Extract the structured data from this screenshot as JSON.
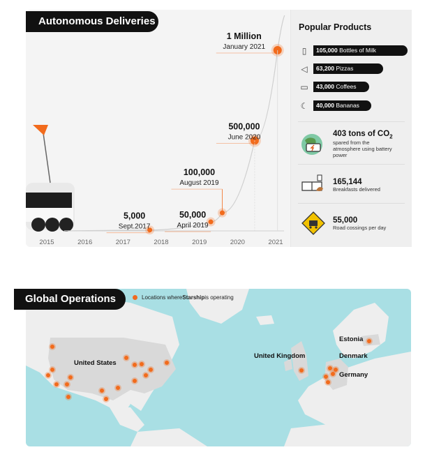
{
  "top_title": "Autonomous Deliveries",
  "chart_data": {
    "type": "line",
    "x_ticks": [
      "2015",
      "2016",
      "2017",
      "2018",
      "2019",
      "2020",
      "2021"
    ],
    "series": [
      {
        "points": [
          {
            "x": "Sept.2017",
            "xnum": 2017.7,
            "y": 5000,
            "label": "5,000",
            "date": "Sept.2017"
          },
          {
            "x": "April 2019",
            "xnum": 2019.3,
            "y": 50000,
            "label": "50,000",
            "date": "April 2019"
          },
          {
            "x": "August 2019",
            "xnum": 2019.6,
            "y": 100000,
            "label": "100,000",
            "date": "August 2019"
          },
          {
            "x": "June 2020",
            "xnum": 2020.45,
            "y": 500000,
            "label": "500,000",
            "date": "June 2020"
          },
          {
            "x": "January 2021",
            "xnum": 2021.05,
            "y": 1000000,
            "label": "1 Million",
            "date": "January 2021"
          }
        ]
      }
    ],
    "accent": "#f26b1c",
    "grid": false
  },
  "popular": {
    "title": "Popular Products",
    "items": [
      {
        "icon": "milk-bottle-icon",
        "value": "105,000",
        "text": " Bottles of Milk"
      },
      {
        "icon": "pizza-icon",
        "value": "63,200",
        "text": " Pizzas"
      },
      {
        "icon": "coffee-icon",
        "value": "43,000",
        "text": " Coffees"
      },
      {
        "icon": "banana-icon",
        "value": "40,000",
        "text": " Bananas"
      }
    ]
  },
  "stats": [
    {
      "icon": "globe-battery-icon",
      "big": "403 tons of CO",
      "sub": "2",
      "small": "spared from the atmosphere using battery power"
    },
    {
      "icon": "breakfast-icon",
      "big": "165,144",
      "small": "Breakfasts delivered"
    },
    {
      "icon": "road-crossing-sign-icon",
      "big": "55,000",
      "small": "Road cossings per day"
    }
  ],
  "bottom_title": "Global Operations",
  "legend": {
    "pre": "Locations where ",
    "bold": "Starship",
    "post": " is operating"
  },
  "map_labels": [
    "United States",
    "United Kingdom",
    "Estonia",
    "Denmark",
    "Germany"
  ],
  "colors": {
    "accent": "#f26b1c",
    "land": "#eeeeee",
    "water": "#a9dfe4",
    "ops_region": "#d9d9d9"
  }
}
